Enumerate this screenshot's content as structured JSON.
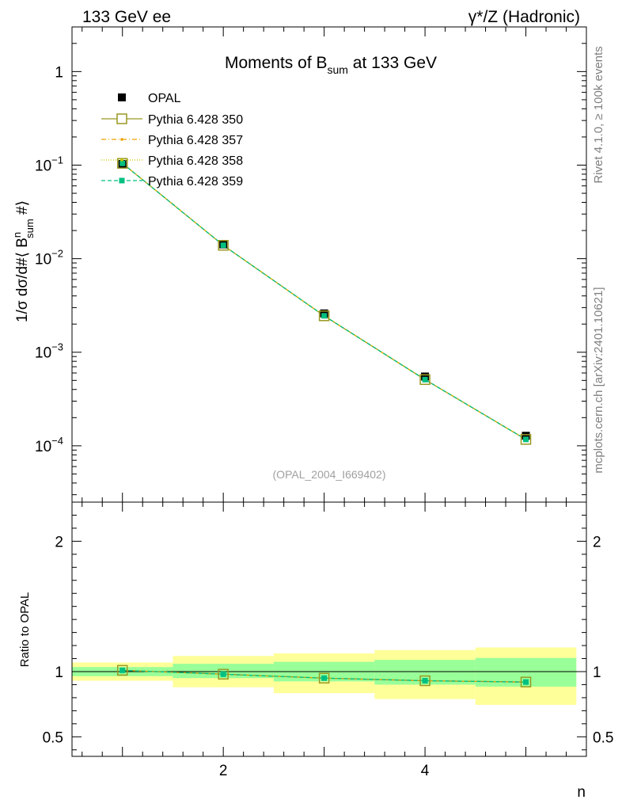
{
  "header": {
    "left": "133 GeV ee",
    "right": "γ*/Z (Hadronic)"
  },
  "side_labels": {
    "rivet": "Rivet 4.1.0, ≥ 100k events",
    "mcplots": "mcplots.cern.ch [arXiv:2401.10621]"
  },
  "colors": {
    "data": "#000000",
    "p350": "#999922",
    "p357": "#f0a000",
    "p358": "#c8c800",
    "p359": "#00c080",
    "band_inner": "#99ff99",
    "band_outer": "#ffff99"
  },
  "chart_data": [
    {
      "type": "scatter",
      "title_main": "Moments of B",
      "title_sub": "sum",
      "title_tail": " at 133 GeV",
      "ylabel_pre": "1/σ  dσ/d#⟨ B",
      "ylabel_sup": "n",
      "ylabel_sub": "sum",
      "ylabel_post": " #⟩",
      "yscale": "log",
      "ylim": [
        2.5e-05,
        3
      ],
      "xlim": [
        0.5,
        5.6
      ],
      "yticks": [
        {
          "value": 1,
          "label": "1"
        },
        {
          "value": 0.1,
          "base": "10",
          "exp": "−1"
        },
        {
          "value": 0.01,
          "base": "10",
          "exp": "−2"
        },
        {
          "value": 0.001,
          "base": "10",
          "exp": "−3"
        },
        {
          "value": 0.0001,
          "base": "10",
          "exp": "−4"
        }
      ],
      "watermark": "(OPAL_2004_I669402)",
      "x": [
        1,
        2,
        3,
        4,
        5
      ],
      "data": {
        "name": "OPAL",
        "values": [
          0.103,
          0.0142,
          0.0026,
          0.00055,
          0.000128
        ]
      },
      "series": [
        {
          "name": "Pythia 6.428 350",
          "values": [
            0.1045,
            0.0139,
            0.00245,
            0.00051,
            0.000117
          ]
        },
        {
          "name": "Pythia 6.428 357",
          "values": [
            0.1045,
            0.0139,
            0.00245,
            0.00051,
            0.000117
          ]
        },
        {
          "name": "Pythia 6.428 358",
          "values": [
            0.1045,
            0.0139,
            0.00245,
            0.00051,
            0.000117
          ]
        },
        {
          "name": "Pythia 6.428 359",
          "values": [
            0.1045,
            0.0139,
            0.00245,
            0.00051,
            0.000117
          ]
        }
      ]
    },
    {
      "type": "line",
      "ylabel": "Ratio to OPAL",
      "xlabel": "n",
      "ylim": [
        0.35,
        2.3
      ],
      "xlim": [
        0.5,
        5.6
      ],
      "yticks": [
        0.5,
        1,
        2
      ],
      "ytick_labels": [
        "0.5",
        "1",
        "2"
      ],
      "xticks": [
        2,
        4
      ],
      "xtick_labels": [
        "2",
        "4"
      ],
      "bins": [
        [
          0.5,
          1.5
        ],
        [
          1.5,
          2.5
        ],
        [
          2.5,
          3.5
        ],
        [
          3.5,
          4.5
        ],
        [
          4.5,
          5.5
        ]
      ],
      "band_inner": [
        [
          0.965,
          1.035
        ],
        [
          0.95,
          1.06
        ],
        [
          0.925,
          1.075
        ],
        [
          0.9,
          1.09
        ],
        [
          0.885,
          1.105
        ]
      ],
      "band_outer": [
        [
          0.93,
          1.07
        ],
        [
          0.88,
          1.12
        ],
        [
          0.835,
          1.14
        ],
        [
          0.79,
          1.165
        ],
        [
          0.745,
          1.185
        ]
      ],
      "x": [
        1,
        2,
        3,
        4,
        5
      ],
      "ratio": [
        1.01,
        0.98,
        0.95,
        0.93,
        0.92
      ]
    }
  ]
}
